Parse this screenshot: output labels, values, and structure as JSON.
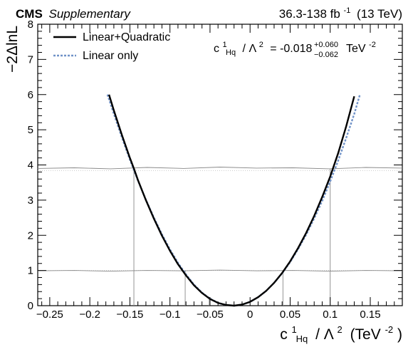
{
  "header": {
    "experiment": "CMS",
    "tag": "Supplementary",
    "lumi_main": "36.3-138 fb",
    "lumi_exp": "-1",
    "energy": "(13 TeV)"
  },
  "result": {
    "c_main": "c",
    "c_sup": "1",
    "c_sub": "Hq",
    "lambda_part": "/ Λ",
    "lambda_sup": "2",
    "equals": "= -0.018",
    "err_plus": "+0.060",
    "err_minus": "−0.062",
    "unit_main": "TeV",
    "unit_sup": "-2"
  },
  "chart_data": {
    "type": "line",
    "xlabel": {
      "c_main": "c",
      "c_sup": "1",
      "c_sub": "Hq",
      "rest": "/ Λ",
      "lambda_sup": "2",
      "unit": "(TeV",
      "unit_sup": "-2",
      "close": ")"
    },
    "ylabel": "−2ΔlnL",
    "xlim": [
      -0.265,
      0.19
    ],
    "ylim": [
      0,
      8
    ],
    "x_ticks": [
      -0.25,
      -0.2,
      -0.15,
      -0.1,
      -0.05,
      0,
      0.05,
      0.1,
      0.15
    ],
    "x_tick_labels": [
      "−0.25",
      "−0.2",
      "−0.15",
      "−0.1",
      "−0.05",
      "0",
      "0.05",
      "0.1",
      "0.15"
    ],
    "y_ticks": [
      0,
      1,
      2,
      3,
      4,
      5,
      6,
      7,
      8
    ],
    "y_tick_labels": [
      "0",
      "1",
      "2",
      "3",
      "4",
      "5",
      "6",
      "7",
      "8"
    ],
    "series": [
      {
        "name": "Linear+Quadratic",
        "color": "#000000",
        "style": "solid",
        "x": [
          -0.176,
          -0.17,
          -0.16,
          -0.15,
          -0.145,
          -0.14,
          -0.13,
          -0.12,
          -0.11,
          -0.1,
          -0.09,
          -0.08,
          -0.07,
          -0.06,
          -0.05,
          -0.04,
          -0.03,
          -0.02,
          -0.01,
          0.0,
          0.01,
          0.02,
          0.03,
          0.04,
          0.05,
          0.06,
          0.07,
          0.08,
          0.09,
          0.1,
          0.11,
          0.12,
          0.13
        ],
        "y": [
          6.0,
          5.55,
          4.85,
          4.2,
          3.9,
          3.57,
          3.0,
          2.47,
          1.99,
          1.56,
          1.18,
          0.86,
          0.58,
          0.36,
          0.19,
          0.08,
          0.02,
          0.0,
          0.03,
          0.11,
          0.24,
          0.42,
          0.65,
          0.93,
          1.26,
          1.64,
          2.07,
          2.55,
          3.09,
          3.67,
          4.34,
          5.1,
          5.95
        ]
      },
      {
        "name": "Linear only",
        "color": "#7092c8",
        "style": "dotted",
        "x": [
          -0.178,
          -0.17,
          -0.16,
          -0.15,
          -0.14,
          -0.13,
          -0.12,
          -0.11,
          -0.1,
          -0.09,
          -0.08,
          -0.07,
          -0.06,
          -0.05,
          -0.04,
          -0.03,
          -0.02,
          -0.01,
          0.0,
          0.01,
          0.02,
          0.03,
          0.04,
          0.05,
          0.06,
          0.07,
          0.08,
          0.09,
          0.1,
          0.11,
          0.12,
          0.13,
          0.137
        ],
        "y": [
          6.0,
          5.45,
          4.78,
          4.15,
          3.56,
          3.01,
          2.5,
          2.03,
          1.6,
          1.22,
          0.89,
          0.6,
          0.37,
          0.2,
          0.08,
          0.02,
          0.0,
          0.03,
          0.11,
          0.24,
          0.42,
          0.65,
          0.92,
          1.24,
          1.61,
          2.02,
          2.48,
          2.98,
          3.53,
          4.13,
          4.77,
          5.45,
          6.0
        ]
      }
    ],
    "thresholds": [
      {
        "y_values": [
          0.99,
          1.0,
          0.98,
          1.0,
          0.99,
          1.01,
          0.99,
          1.0,
          0.98,
          1.0,
          0.99
        ],
        "ref": 1.0
      },
      {
        "y_values": [
          3.9,
          3.92,
          3.89,
          3.93,
          3.9,
          3.94,
          3.91,
          3.92,
          3.89,
          3.93,
          3.91
        ],
        "ref": 3.84
      }
    ],
    "crossings": [
      {
        "x": -0.145,
        "y": 3.9
      },
      {
        "x": -0.081,
        "y": 1.0
      },
      {
        "x": -0.051,
        "y": 0.19
      },
      {
        "x": 0.041,
        "y": 1.0
      },
      {
        "x": 0.1,
        "y": 3.9
      }
    ],
    "legend": "top-left"
  }
}
